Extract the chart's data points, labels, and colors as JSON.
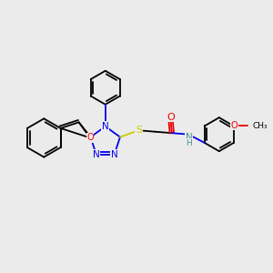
{
  "bg_color": "#ebebeb",
  "atom_colors": {
    "C": "#000000",
    "N": "#0000ee",
    "O": "#ee0000",
    "S": "#cccc00",
    "H": "#4a9090"
  },
  "figsize": [
    3.0,
    3.0
  ],
  "dpi": 100
}
